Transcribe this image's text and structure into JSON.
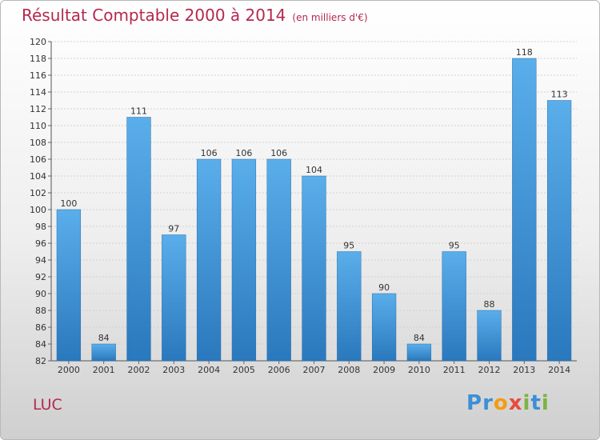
{
  "chart_data": {
    "type": "bar",
    "title": "Résultat Comptable 2000 à 2014",
    "subtitle": "(en milliers d'€)",
    "categories": [
      "2000",
      "2001",
      "2002",
      "2003",
      "2004",
      "2005",
      "2006",
      "2007",
      "2008",
      "2009",
      "2010",
      "2011",
      "2012",
      "2013",
      "2014"
    ],
    "values": [
      100,
      84,
      111,
      97,
      106,
      106,
      106,
      104,
      95,
      90,
      84,
      95,
      88,
      118,
      113
    ],
    "ylim": [
      82,
      120
    ],
    "ytick_step": 2,
    "xlabel": "",
    "ylabel": "",
    "grid": true,
    "bar_color": "#4a9ee0"
  },
  "commune": "LUC",
  "logo": {
    "letters": [
      "P",
      "r",
      "o",
      "x",
      "i",
      "t",
      "i"
    ],
    "colors": [
      "#3c8fd6",
      "#3c8fd6",
      "#f39c12",
      "#e74c3c",
      "#7cb342",
      "#3c8fd6",
      "#7cb342"
    ]
  }
}
